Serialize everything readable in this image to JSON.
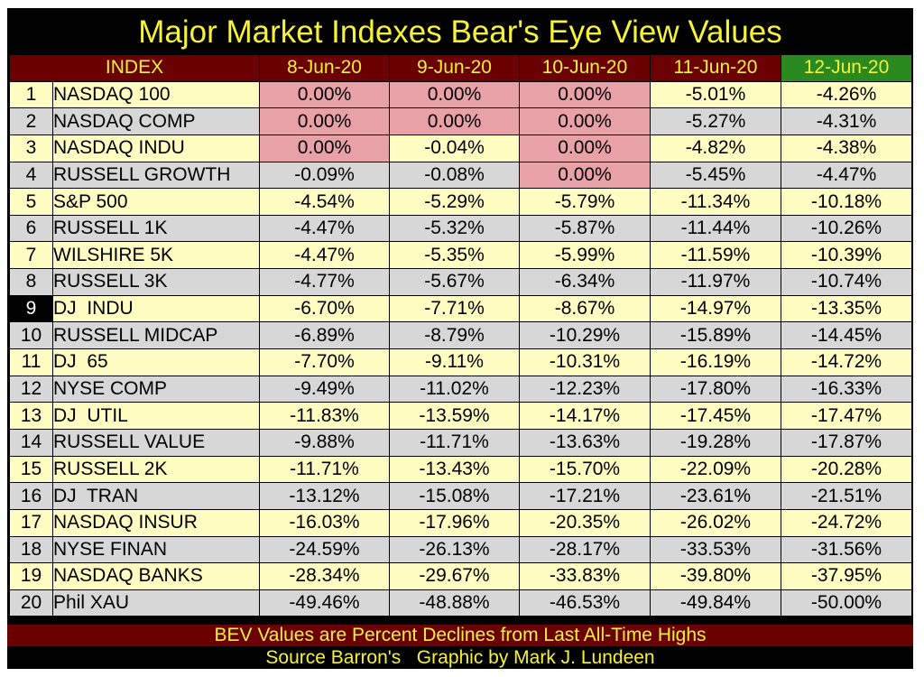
{
  "title": "Major Market Indexes Bear's Eye View Values",
  "colors": {
    "background": "#000000",
    "text_yellow": "#f6f23a",
    "header_dark_red": "#6a0000",
    "header_green": "#2a8a1f",
    "row_yellow": "#fffdc2",
    "row_gray": "#d7d7d7",
    "all_time_high_pink": "#e8a1a6"
  },
  "chart_data": {
    "type": "table",
    "columns": [
      "INDEX",
      "8-Jun-20",
      "9-Jun-20",
      "10-Jun-20",
      "11-Jun-20",
      "12-Jun-20"
    ],
    "rows": [
      {
        "num": "1",
        "name": "NASDAQ 100",
        "values": [
          "0.00%",
          "0.00%",
          "0.00%",
          "-5.01%",
          "-4.26%"
        ]
      },
      {
        "num": "2",
        "name": "NASDAQ COMP",
        "values": [
          "0.00%",
          "0.00%",
          "0.00%",
          "-5.27%",
          "-4.31%"
        ]
      },
      {
        "num": "3",
        "name": "NASDAQ INDU",
        "values": [
          "0.00%",
          "-0.04%",
          "0.00%",
          "-4.82%",
          "-4.38%"
        ]
      },
      {
        "num": "4",
        "name": "RUSSELL GROWTH",
        "values": [
          "-0.09%",
          "-0.08%",
          "0.00%",
          "-5.45%",
          "-4.47%"
        ]
      },
      {
        "num": "5",
        "name": "S&P 500",
        "values": [
          "-4.54%",
          "-5.29%",
          "-5.79%",
          "-11.34%",
          "-10.18%"
        ]
      },
      {
        "num": "6",
        "name": "RUSSELL 1K",
        "values": [
          "-4.47%",
          "-5.32%",
          "-5.87%",
          "-11.44%",
          "-10.26%"
        ]
      },
      {
        "num": "7",
        "name": "WILSHIRE 5K",
        "values": [
          "-4.47%",
          "-5.35%",
          "-5.99%",
          "-11.59%",
          "-10.39%"
        ]
      },
      {
        "num": "8",
        "name": "RUSSELL 3K",
        "values": [
          "-4.77%",
          "-5.67%",
          "-6.34%",
          "-11.97%",
          "-10.74%"
        ]
      },
      {
        "num": "9",
        "name": "DJ  INDU",
        "values": [
          "-6.70%",
          "-7.71%",
          "-8.67%",
          "-14.97%",
          "-13.35%"
        ]
      },
      {
        "num": "10",
        "name": "RUSSELL MIDCAP",
        "values": [
          "-6.89%",
          "-8.79%",
          "-10.29%",
          "-15.89%",
          "-14.45%"
        ]
      },
      {
        "num": "11",
        "name": "DJ  65",
        "values": [
          "-7.70%",
          "-9.11%",
          "-10.31%",
          "-16.19%",
          "-14.72%"
        ]
      },
      {
        "num": "12",
        "name": "NYSE COMP",
        "values": [
          "-9.49%",
          "-11.02%",
          "-12.23%",
          "-17.80%",
          "-16.33%"
        ]
      },
      {
        "num": "13",
        "name": "DJ  UTIL",
        "values": [
          "-11.83%",
          "-13.59%",
          "-14.17%",
          "-17.45%",
          "-17.47%"
        ]
      },
      {
        "num": "14",
        "name": "RUSSELL VALUE",
        "values": [
          "-9.88%",
          "-11.71%",
          "-13.63%",
          "-19.28%",
          "-17.87%"
        ]
      },
      {
        "num": "15",
        "name": "RUSSELL 2K",
        "values": [
          "-11.71%",
          "-13.43%",
          "-15.70%",
          "-22.09%",
          "-20.28%"
        ]
      },
      {
        "num": "16",
        "name": "DJ  TRAN",
        "values": [
          "-13.12%",
          "-15.08%",
          "-17.21%",
          "-23.61%",
          "-21.51%"
        ]
      },
      {
        "num": "17",
        "name": "NASDAQ INSUR",
        "values": [
          "-16.03%",
          "-17.96%",
          "-20.35%",
          "-26.02%",
          "-24.72%"
        ]
      },
      {
        "num": "18",
        "name": "NYSE FINAN",
        "values": [
          "-24.59%",
          "-26.13%",
          "-28.17%",
          "-33.53%",
          "-31.56%"
        ]
      },
      {
        "num": "19",
        "name": "NASDAQ BANKS",
        "values": [
          "-28.34%",
          "-29.67%",
          "-33.83%",
          "-39.80%",
          "-37.95%"
        ]
      },
      {
        "num": "20",
        "name": "Phil XAU",
        "values": [
          "-49.46%",
          "-48.88%",
          "-46.53%",
          "-49.84%",
          "-50.00%"
        ]
      }
    ],
    "highlighted_cells": [
      [
        0,
        0
      ],
      [
        0,
        1
      ],
      [
        0,
        2
      ],
      [
        1,
        0
      ],
      [
        1,
        1
      ],
      [
        1,
        2
      ],
      [
        2,
        0
      ],
      [
        2,
        2
      ],
      [
        3,
        2
      ]
    ],
    "highlighted_row_number": 8,
    "highlighted_column": 4
  },
  "footer": {
    "note": "BEV Values are Percent Declines from Last All-Time Highs",
    "source": "Source Barron's   Graphic by Mark J. Lundeen"
  }
}
